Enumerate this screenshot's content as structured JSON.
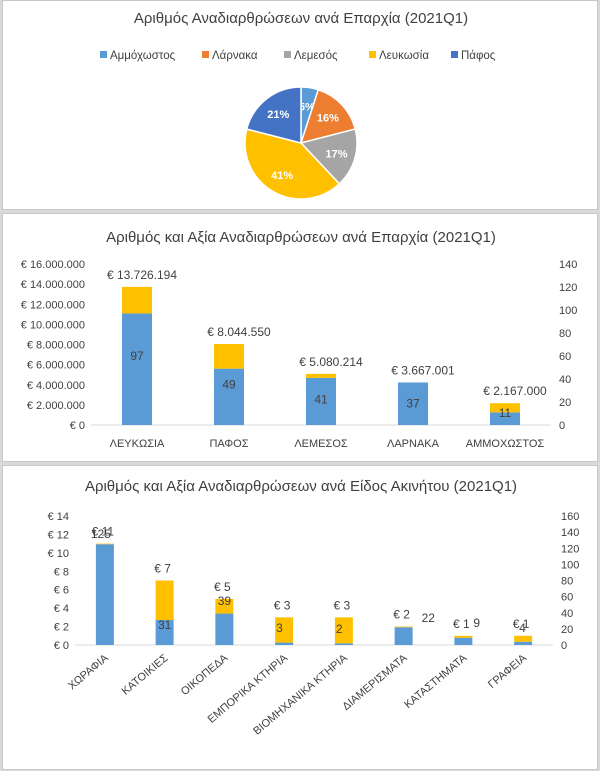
{
  "chart_data": [
    {
      "type": "pie",
      "title": "Αριθμός Αναδιαρθρώσεων  ανά Επαρχία (2021Q1)",
      "categories": [
        "Αμμόχωστος",
        "Λάρνακα",
        "Λεμεσός",
        "Λευκωσία",
        "Πάφος"
      ],
      "values": [
        5,
        16,
        17,
        41,
        21
      ],
      "labels": [
        "5%",
        "16%",
        "17%",
        "41%",
        "21%"
      ],
      "colors": [
        "#5b9bd5",
        "#ed7d31",
        "#a5a5a5",
        "#ffc000",
        "#4472c4"
      ],
      "legend": "top"
    },
    {
      "type": "bar",
      "title": "Αριθμός  και Αξία Αναδιαρθρώσεων  ανά Επαρχία (2021Q1)",
      "categories": [
        "ΛΕΥΚΩΣΙΑ",
        "ΠΑΦΟΣ",
        "ΛΕΜΕΣΟΣ",
        "ΛΑΡΝΑΚΑ",
        "ΑΜΜΟΧΩΣΤΟΣ"
      ],
      "series": [
        {
          "name": "Αριθμός",
          "axis": "right",
          "color": "#5b9bd5",
          "values": [
            97,
            49,
            41,
            37,
            11
          ]
        },
        {
          "name": "Αξία",
          "axis": "left",
          "color": "#ffc000",
          "values": [
            13726194,
            8044550,
            5080214,
            3667001,
            2167000
          ]
        }
      ],
      "count_labels": [
        "97",
        "49",
        "41",
        "37",
        "11"
      ],
      "value_labels": [
        "€ 13.726.194",
        "€ 8.044.550",
        "€ 5.080.214",
        "€ 3.667.001",
        "€ 2.167.000"
      ],
      "ylim_left": [
        0,
        16000000
      ],
      "ylim_right": [
        0,
        140
      ],
      "yticks_left": [
        "€ 0",
        "€ 2.000.000",
        "€ 4.000.000",
        "€ 6.000.000",
        "€ 8.000.000",
        "€ 10.000.000",
        "€ 12.000.000",
        "€ 14.000.000",
        "€ 16.000.000"
      ],
      "yticks_right": [
        "0",
        "20",
        "40",
        "60",
        "80",
        "100",
        "120",
        "140"
      ]
    },
    {
      "type": "bar",
      "title": "Αριθμός και Αξία Αναδιαρθρώσεων  ανά Είδος Ακινήτου  (2021Q1)",
      "categories": [
        "ΧΩΡΑΦΙΑ",
        "ΚΑΤΟΙΚΙΕΣ",
        "ΟΙΚΟΠΕΔΑ",
        "ΕΜΠΟΡΙΚΑ ΚΤΗΡΙΑ",
        "ΒΙΟΜΗΧΑΝΙΚΑ ΚΤΗΡΙΑ",
        "ΔΙΑΜΕΡΙΣΜΑΤΑ",
        "ΚΑΤΑΣΤΗΜΑΤΑ",
        "ΓΡΑΦΕΙΑ"
      ],
      "series": [
        {
          "name": "Αριθμός",
          "axis": "right",
          "color": "#5b9bd5",
          "values": [
            125,
            31,
            39,
            3,
            2,
            22,
            9,
            4
          ]
        },
        {
          "name": "Αξία",
          "axis": "left",
          "color": "#ffc000",
          "values": [
            11,
            7,
            5,
            3,
            3,
            2,
            1,
            1
          ]
        }
      ],
      "count_labels": [
        "125",
        "31",
        "39",
        "3",
        "2",
        "22",
        "9",
        "4"
      ],
      "value_labels": [
        "€ 11",
        "€ 7",
        "€ 5",
        "€ 3",
        "€ 3",
        "€ 2",
        "€ 1",
        "€ 1"
      ],
      "ylim_left": [
        0,
        14
      ],
      "ylim_right": [
        0,
        160
      ],
      "yticks_left": [
        "€ 0",
        "€ 2",
        "€ 4",
        "€ 6",
        "€ 8",
        "€ 10",
        "€ 12",
        "€ 14"
      ],
      "yticks_right": [
        "0",
        "20",
        "40",
        "60",
        "80",
        "100",
        "120",
        "140",
        "160"
      ]
    }
  ]
}
